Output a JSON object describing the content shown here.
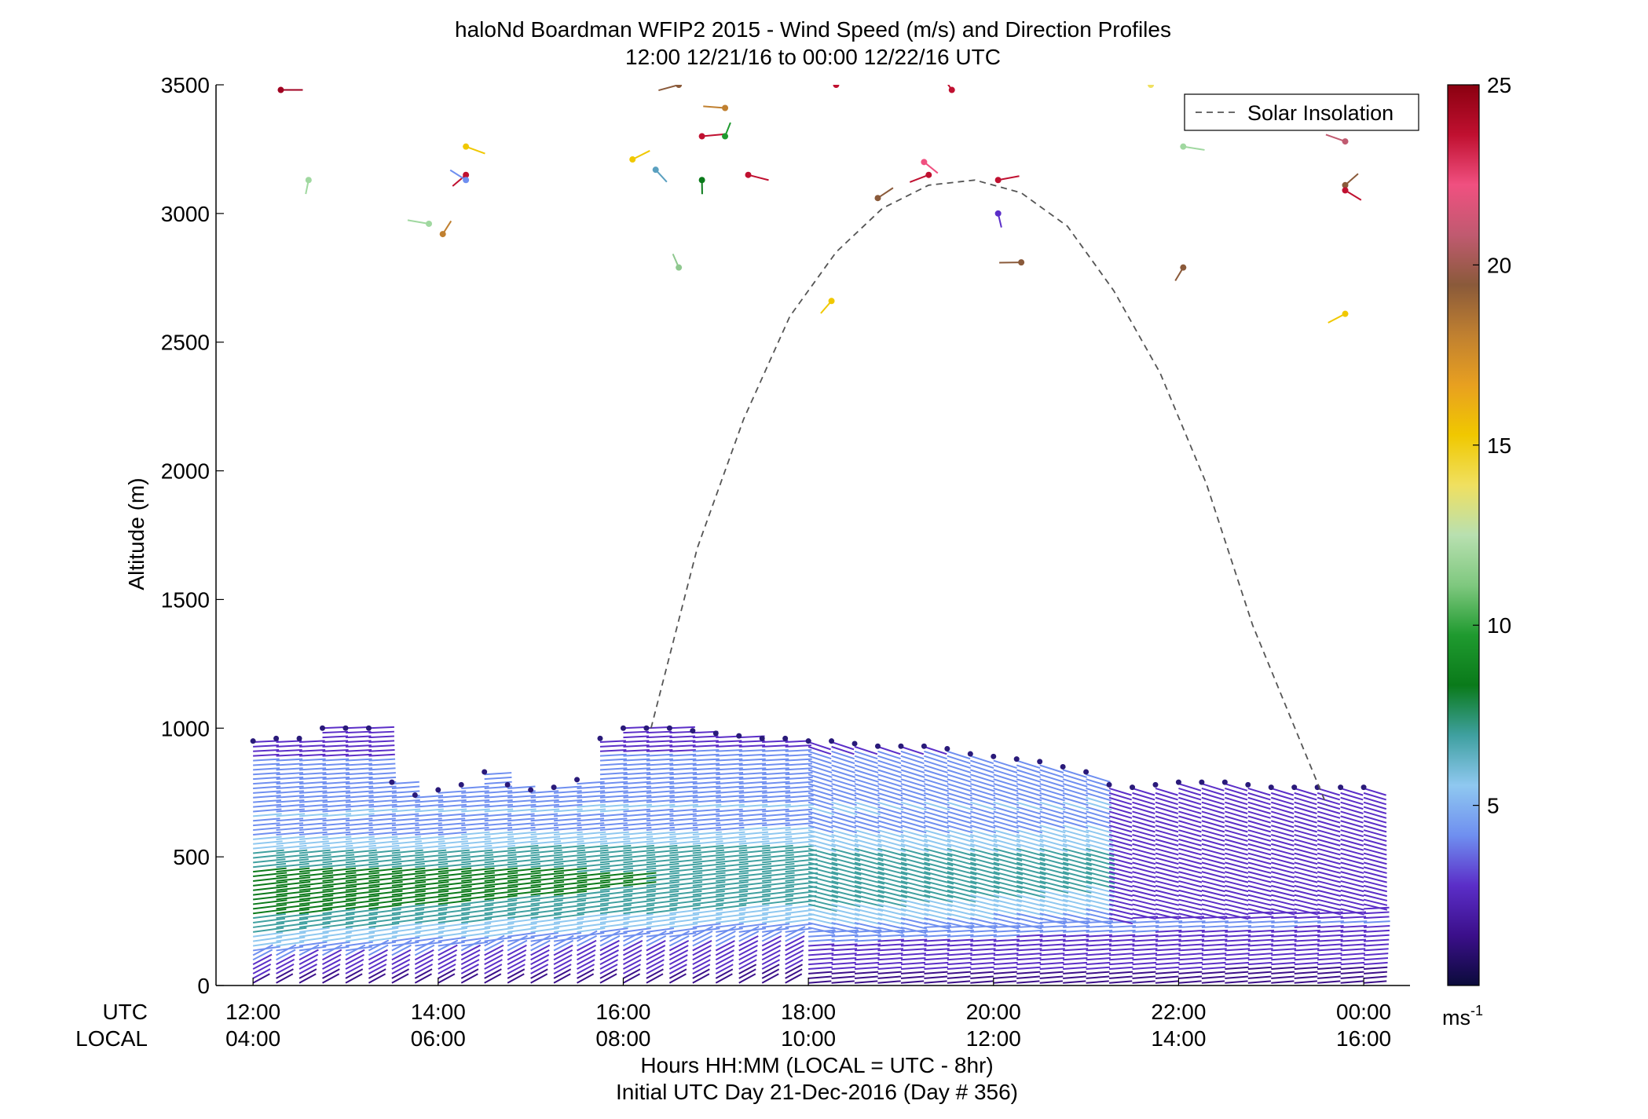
{
  "chart_data": {
    "type": "wind-barb-profile",
    "title": "haloNd Boardman WFIP2 2015 - Wind Speed (m/s) and Direction Profiles",
    "subtitle": "12:00 12/21/16 to 00:00 12/22/16  UTC",
    "ylabel": "Altitude (m)",
    "xlabel": "Hours HH:MM  (LOCAL = UTC - 8hr)",
    "xlabel2": "Initial UTC Day 21-Dec-2016 (Day # 356)",
    "row_label_utc": "UTC",
    "row_label_local": "LOCAL",
    "ylim": [
      0,
      3500
    ],
    "y_ticks": [
      0,
      500,
      1000,
      1500,
      2000,
      2500,
      3000,
      3500
    ],
    "x_range_hours_utc": [
      11.6,
      24.5
    ],
    "x_ticks_utc_hours": [
      12,
      14,
      16,
      18,
      20,
      22,
      24
    ],
    "x_tick_labels_utc": [
      "12:00",
      "14:00",
      "16:00",
      "18:00",
      "20:00",
      "22:00",
      "00:00"
    ],
    "x_tick_labels_local": [
      "04:00",
      "06:00",
      "08:00",
      "10:00",
      "12:00",
      "14:00",
      "16:00"
    ],
    "legend": {
      "label": "Solar Insolation",
      "position": "top-right"
    },
    "colorbar": {
      "unit": "ms",
      "unit_exponent": "-1",
      "range": [
        0,
        25
      ],
      "ticks": [
        5,
        10,
        15,
        20,
        25
      ],
      "colors": [
        "#0b0b3b",
        "#3b0f8a",
        "#5b2ec8",
        "#6f8ff0",
        "#8fc8f0",
        "#3fa0a0",
        "#0a7a1a",
        "#1f9a2f",
        "#7fc87f",
        "#b8e0b0",
        "#f0e060",
        "#f0c800",
        "#e8a020",
        "#c08030",
        "#8a5a3a",
        "#c05a70",
        "#f05080",
        "#c01030",
        "#8a0010"
      ]
    },
    "profiles_time_interval_min": 15,
    "profile_columns_utc_hours": [
      12.0,
      12.25,
      12.5,
      12.75,
      13.0,
      13.25,
      13.5,
      13.75,
      14.0,
      14.25,
      14.5,
      14.75,
      15.0,
      15.25,
      15.5,
      15.75,
      16.0,
      16.25,
      16.5,
      16.75,
      17.0,
      17.25,
      17.5,
      17.75,
      18.0,
      18.25,
      18.5,
      18.75,
      19.0,
      19.25,
      19.5,
      19.75,
      20.0,
      20.25,
      20.5,
      20.75,
      21.0,
      21.25,
      21.5,
      21.75,
      22.0,
      22.25,
      22.5,
      22.75,
      23.0,
      23.25,
      23.5,
      23.75,
      24.0
    ],
    "profile_tops_m": [
      950,
      960,
      960,
      1000,
      1000,
      1000,
      790,
      740,
      760,
      780,
      830,
      780,
      760,
      770,
      800,
      960,
      1000,
      1000,
      1000,
      990,
      980,
      970,
      960,
      960,
      950,
      950,
      940,
      930,
      930,
      930,
      920,
      900,
      890,
      880,
      870,
      850,
      830,
      780,
      770,
      780,
      790,
      790,
      790,
      780,
      770,
      770,
      770,
      770,
      770
    ],
    "jet_layer_description": "Low-level wind speed maximum (~7-9 m/s) between ~150 m and ~700 m rising through the day; weaker winds (1-4 m/s) near surface and aloft",
    "solar_insolation_curve": {
      "x_utc_hours": [
        16.3,
        16.8,
        17.3,
        17.8,
        18.3,
        18.8,
        19.3,
        19.8,
        20.3,
        20.8,
        21.3,
        21.8,
        22.3,
        22.8,
        23.2,
        23.6
      ],
      "altitude_scaled_m": [
        1000,
        1700,
        2200,
        2600,
        2850,
        3020,
        3110,
        3130,
        3080,
        2950,
        2700,
        2380,
        1950,
        1400,
        1050,
        700
      ]
    },
    "sparse_points_aloft": [
      {
        "x": 12.3,
        "y": 3480,
        "color": "#a00020"
      },
      {
        "x": 12.6,
        "y": 3130,
        "color": "#a0d8a0"
      },
      {
        "x": 13.9,
        "y": 2960,
        "color": "#a0d8a0"
      },
      {
        "x": 14.05,
        "y": 2920,
        "color": "#c08030"
      },
      {
        "x": 14.3,
        "y": 3260,
        "color": "#f0c800"
      },
      {
        "x": 14.3,
        "y": 3150,
        "color": "#c01030"
      },
      {
        "x": 14.3,
        "y": 3130,
        "color": "#6f8ff0"
      },
      {
        "x": 16.1,
        "y": 3210,
        "color": "#f0c800"
      },
      {
        "x": 16.35,
        "y": 3170,
        "color": "#5aa0c0"
      },
      {
        "x": 16.6,
        "y": 3500,
        "color": "#8a5a3a"
      },
      {
        "x": 16.6,
        "y": 2790,
        "color": "#8fc88f"
      },
      {
        "x": 16.85,
        "y": 3300,
        "color": "#c01030"
      },
      {
        "x": 16.85,
        "y": 3130,
        "color": "#0a7a1a"
      },
      {
        "x": 17.1,
        "y": 3410,
        "color": "#c08030"
      },
      {
        "x": 17.1,
        "y": 3300,
        "color": "#1f9a2f"
      },
      {
        "x": 17.35,
        "y": 3150,
        "color": "#c01030"
      },
      {
        "x": 18.25,
        "y": 2660,
        "color": "#f0c800"
      },
      {
        "x": 18.3,
        "y": 3500,
        "color": "#c01030"
      },
      {
        "x": 18.75,
        "y": 3060,
        "color": "#8a5a3a"
      },
      {
        "x": 19.25,
        "y": 3200,
        "color": "#f05080"
      },
      {
        "x": 19.3,
        "y": 3150,
        "color": "#c01030"
      },
      {
        "x": 19.55,
        "y": 3480,
        "color": "#c01030"
      },
      {
        "x": 20.05,
        "y": 3130,
        "color": "#c01030"
      },
      {
        "x": 20.05,
        "y": 3000,
        "color": "#5b2ec8"
      },
      {
        "x": 20.3,
        "y": 2810,
        "color": "#8a5a3a"
      },
      {
        "x": 21.7,
        "y": 3500,
        "color": "#f0e060"
      },
      {
        "x": 22.05,
        "y": 3260,
        "color": "#a0d8a0"
      },
      {
        "x": 22.05,
        "y": 2790,
        "color": "#8a5a3a"
      },
      {
        "x": 23.8,
        "y": 3280,
        "color": "#c05a70"
      },
      {
        "x": 23.8,
        "y": 3110,
        "color": "#8a5a3a"
      },
      {
        "x": 23.8,
        "y": 3090,
        "color": "#c01030"
      },
      {
        "x": 23.8,
        "y": 2610,
        "color": "#f0c800"
      }
    ]
  }
}
